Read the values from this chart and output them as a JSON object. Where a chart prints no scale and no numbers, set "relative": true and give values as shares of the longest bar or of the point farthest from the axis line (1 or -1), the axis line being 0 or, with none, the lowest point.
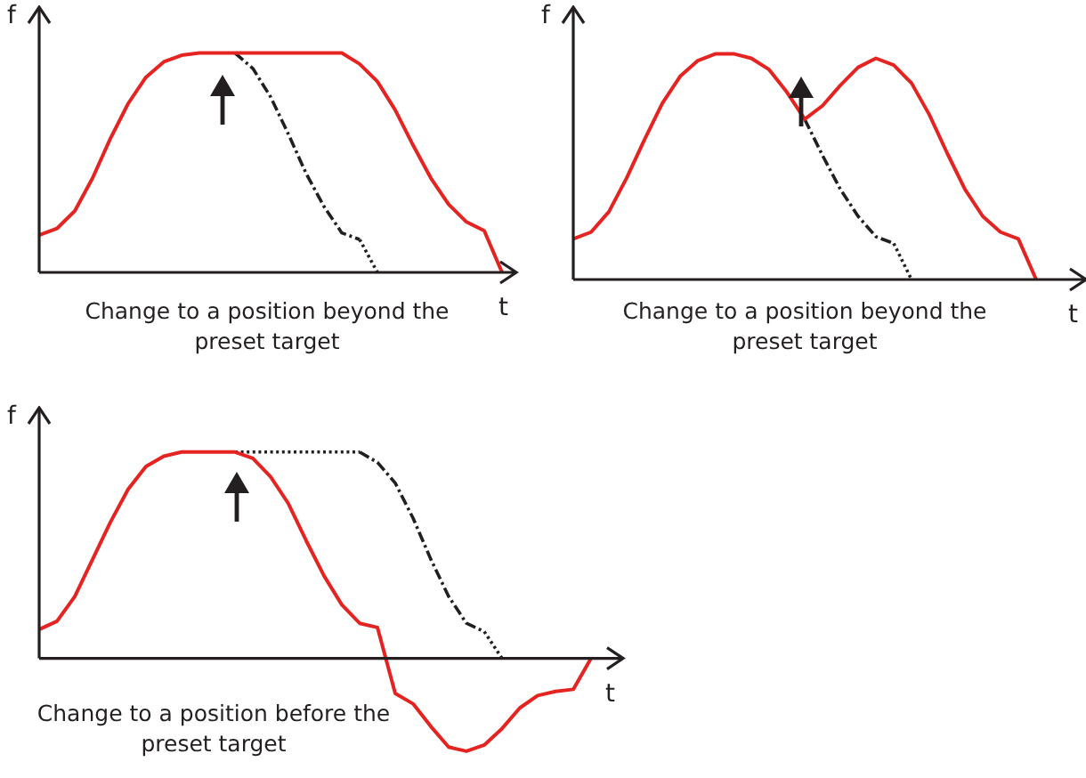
{
  "chart_data": [
    {
      "type": "line",
      "relative": true,
      "xlabel": "t",
      "ylabel": "f",
      "legend": false,
      "marker": "none",
      "annotations": [
        "Change to a position beyond the preset target"
      ],
      "categories": [
        null,
        null,
        null,
        null,
        null,
        null,
        null,
        null,
        null,
        null,
        null,
        null,
        null,
        null,
        null,
        null,
        null,
        null,
        null,
        null,
        null,
        null,
        null,
        null,
        null,
        null,
        null
      ],
      "series": [
        {
          "color": "#e52421",
          "line_style": "solid",
          "values": [
            0.17,
            0.2,
            0.28,
            0.43,
            0.61,
            0.77,
            0.89,
            0.96,
            0.99,
            1,
            1,
            1,
            1,
            1,
            1,
            1,
            1,
            1,
            0.95,
            0.87,
            0.74,
            0.58,
            0.43,
            0.31,
            0.23,
            0.19,
            0
          ]
        },
        {
          "color": "#231f20",
          "line_style": "dashed",
          "values": [
            null,
            null,
            null,
            null,
            null,
            null,
            null,
            null,
            null,
            null,
            null,
            1,
            0.93,
            0.8,
            0.63,
            0.45,
            0.3,
            0.18,
            0.15,
            null,
            null,
            null,
            null,
            null,
            null,
            null,
            null
          ]
        },
        {
          "color": "#231f20",
          "line_style": "dotted",
          "values": [
            null,
            null,
            null,
            null,
            null,
            null,
            null,
            null,
            null,
            null,
            null,
            null,
            null,
            null,
            null,
            null,
            null,
            null,
            0.15,
            0,
            null,
            null,
            null,
            null,
            null,
            null,
            null
          ]
        }
      ]
    },
    {
      "type": "line",
      "relative": true,
      "xlabel": "t",
      "ylabel": "f",
      "legend": false,
      "marker": "none",
      "annotations": [
        "Change to a position beyond the preset target"
      ],
      "categories": [
        null,
        null,
        null,
        null,
        null,
        null,
        null,
        null,
        null,
        null,
        null,
        null,
        null,
        null,
        null,
        null,
        null,
        null,
        null,
        null,
        null,
        null,
        null,
        null,
        null,
        null,
        null,
        null,
        null
      ],
      "series": [
        {
          "color": "#e52421",
          "line_style": "solid",
          "values": [
            0.18,
            0.21,
            0.3,
            0.45,
            0.62,
            0.78,
            0.9,
            0.97,
            1,
            1,
            0.98,
            0.93,
            0.83,
            0.71,
            0.77,
            0.86,
            0.94,
            0.98,
            0.95,
            0.87,
            0.73,
            0.56,
            0.4,
            0.28,
            0.21,
            0.18,
            0,
            null,
            null
          ]
        },
        {
          "color": "#231f20",
          "line_style": "dashed",
          "values": [
            null,
            null,
            null,
            null,
            null,
            null,
            null,
            null,
            null,
            null,
            null,
            null,
            null,
            0.71,
            0.55,
            0.4,
            0.28,
            0.19,
            0.16,
            null,
            null,
            null,
            null,
            null,
            null,
            null,
            null,
            null,
            null
          ]
        },
        {
          "color": "#231f20",
          "line_style": "dotted",
          "values": [
            null,
            null,
            null,
            null,
            null,
            null,
            null,
            null,
            null,
            null,
            null,
            null,
            null,
            null,
            null,
            null,
            null,
            null,
            0.16,
            0,
            null,
            null,
            null,
            null,
            null,
            null,
            null,
            null,
            null
          ]
        }
      ]
    },
    {
      "type": "line",
      "relative": true,
      "xlabel": "t",
      "ylabel": "f",
      "legend": false,
      "marker": "none",
      "annotations": [
        "Change to a position before the preset target"
      ],
      "categories": [
        null,
        null,
        null,
        null,
        null,
        null,
        null,
        null,
        null,
        null,
        null,
        null,
        null,
        null,
        null,
        null,
        null,
        null,
        null,
        null,
        null,
        null,
        null,
        null,
        null,
        null,
        null,
        null,
        null,
        null,
        null,
        null,
        null
      ],
      "series": [
        {
          "color": "#e52421",
          "line_style": "solid",
          "values": [
            0.14,
            0.18,
            0.3,
            0.48,
            0.66,
            0.82,
            0.93,
            0.98,
            1,
            1,
            1,
            1,
            0.97,
            0.88,
            0.75,
            0.57,
            0.4,
            0.26,
            0.17,
            0.15,
            -0.17,
            -0.22,
            -0.33,
            -0.43,
            -0.45,
            -0.42,
            -0.34,
            -0.24,
            -0.18,
            -0.16,
            -0.15,
            0,
            null
          ]
        },
        {
          "color": "#231f20",
          "line_style": "dashed",
          "values": [
            null,
            null,
            null,
            null,
            null,
            null,
            null,
            null,
            null,
            null,
            null,
            null,
            null,
            null,
            null,
            null,
            null,
            null,
            1,
            0.95,
            0.85,
            0.68,
            0.48,
            0.3,
            0.17,
            0.13,
            null,
            null,
            null,
            null,
            null,
            null,
            null
          ]
        },
        {
          "color": "#231f20",
          "line_style": "dotted",
          "values": [
            null,
            null,
            null,
            null,
            null,
            null,
            null,
            null,
            null,
            null,
            null,
            1,
            1,
            1,
            1,
            1,
            1,
            1,
            1,
            null,
            null,
            null,
            null,
            null,
            null,
            0.13,
            0,
            null,
            null,
            null,
            null,
            null,
            null
          ]
        }
      ]
    }
  ]
}
